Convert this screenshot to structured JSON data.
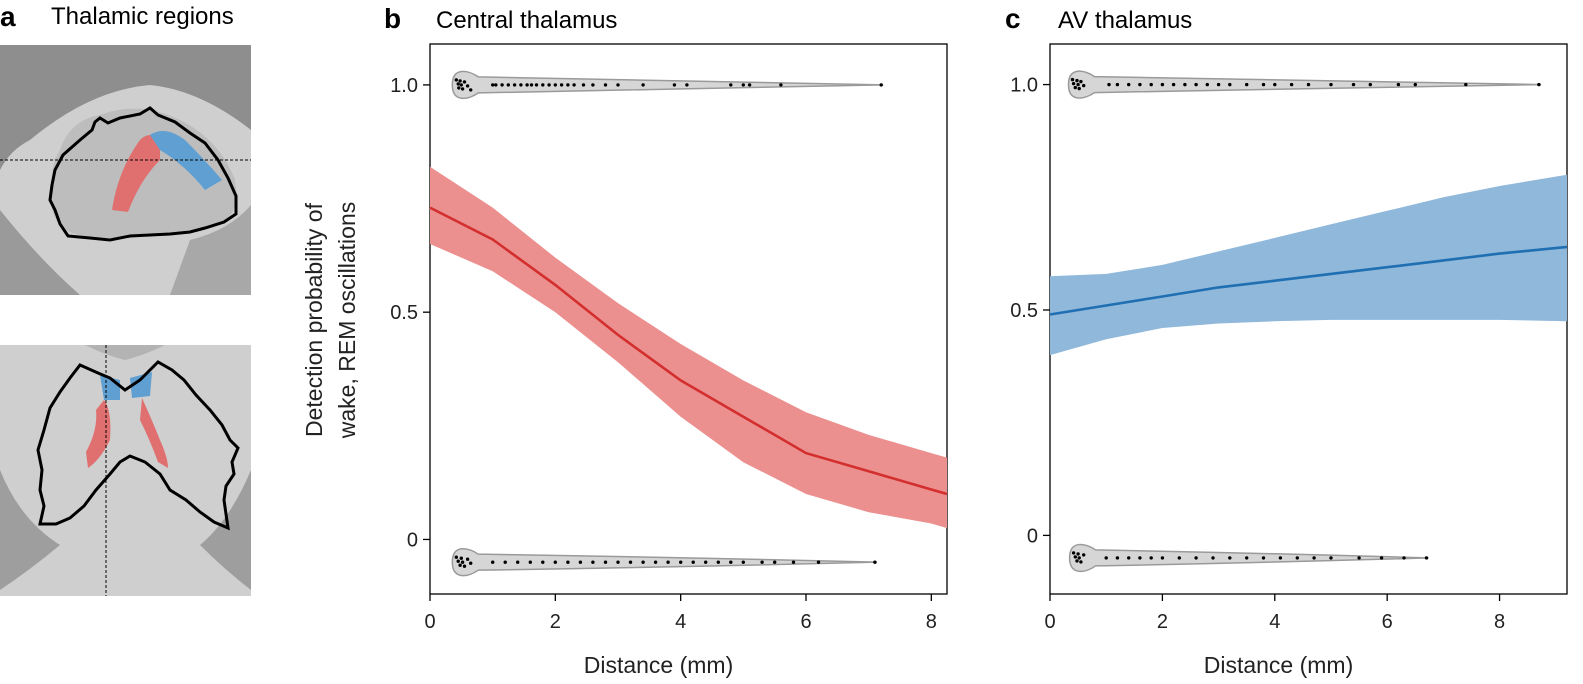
{
  "panels": {
    "a": {
      "letter": "a",
      "title": "Thalamic regions"
    },
    "b": {
      "letter": "b",
      "title": "Central thalamus"
    },
    "c": {
      "letter": "c",
      "title": "AV thalamus"
    }
  },
  "colors": {
    "central_line": "#d32f2f",
    "central_band": "#ec8f8f",
    "av_line": "#1f6fb2",
    "av_band": "#8fb8db",
    "violin_fill": "#d6d6d6",
    "violin_edge": "#9a9a9a",
    "mri_red": "#e07070",
    "mri_blue": "#5f9fd1"
  },
  "ylabel_line1": "Detection probability of",
  "ylabel_line2": "wake, REM oscillations",
  "chart_data": [
    {
      "type": "line",
      "panel": "b",
      "title": "Central thalamus",
      "xlabel": "Distance (mm)",
      "ylabel": "Detection probability of wake, REM oscillations",
      "xlim": [
        0,
        8.25
      ],
      "ylim": [
        -0.12,
        1.09
      ],
      "xticks": [
        0,
        2,
        4,
        6,
        8
      ],
      "yticks": [
        0,
        0.5,
        1.0
      ],
      "ytick_labels": [
        "0",
        "0.5",
        "1.0"
      ],
      "series": [
        {
          "x": [
            0,
            1,
            2,
            3,
            4,
            5,
            6,
            7,
            8,
            8.25
          ],
          "y": [
            0.73,
            0.66,
            0.56,
            0.45,
            0.35,
            0.27,
            0.19,
            0.15,
            0.11,
            0.1
          ],
          "lower": [
            0.65,
            0.59,
            0.5,
            0.39,
            0.27,
            0.17,
            0.1,
            0.06,
            0.035,
            0.025
          ],
          "upper": [
            0.82,
            0.73,
            0.62,
            0.52,
            0.43,
            0.35,
            0.28,
            0.23,
            0.19,
            0.18
          ]
        }
      ],
      "violins": {
        "top_y": 1.0,
        "bottom_y": -0.05,
        "top_points": [
          0.42,
          0.45,
          0.46,
          0.48,
          0.5,
          0.52,
          0.55,
          0.6,
          0.65,
          1.0,
          1.05,
          1.15,
          1.25,
          1.35,
          1.45,
          1.55,
          1.62,
          1.7,
          1.8,
          1.9,
          2.0,
          2.1,
          2.2,
          2.3,
          2.45,
          2.6,
          2.8,
          3.0,
          3.4,
          3.9,
          4.1,
          4.8,
          5.0,
          5.1,
          5.6,
          7.2
        ],
        "bottom_points": [
          0.42,
          0.45,
          0.48,
          0.5,
          0.52,
          0.55,
          0.6,
          0.65,
          1.0,
          1.2,
          1.4,
          1.6,
          1.8,
          2.0,
          2.2,
          2.4,
          2.6,
          2.8,
          3.0,
          3.2,
          3.4,
          3.6,
          3.8,
          4.0,
          4.2,
          4.4,
          4.6,
          4.8,
          5.0,
          5.3,
          5.5,
          5.8,
          6.2,
          7.1
        ]
      }
    },
    {
      "type": "line",
      "panel": "c",
      "title": "AV thalamus",
      "xlabel": "Distance (mm)",
      "ylabel": "",
      "xlim": [
        0,
        9.2
      ],
      "ylim": [
        -0.13,
        1.09
      ],
      "xticks": [
        0,
        2,
        4,
        6,
        8
      ],
      "yticks": [
        0,
        0.5,
        1.0
      ],
      "ytick_labels": [
        "0",
        "0.5",
        "1.0"
      ],
      "series": [
        {
          "x": [
            0,
            1,
            2,
            3,
            4,
            5,
            6,
            7,
            8,
            9.2
          ],
          "y": [
            0.49,
            0.51,
            0.53,
            0.55,
            0.565,
            0.58,
            0.595,
            0.61,
            0.625,
            0.64
          ],
          "lower": [
            0.4,
            0.435,
            0.46,
            0.47,
            0.475,
            0.478,
            0.478,
            0.478,
            0.478,
            0.475
          ],
          "upper": [
            0.575,
            0.58,
            0.6,
            0.63,
            0.66,
            0.69,
            0.72,
            0.75,
            0.775,
            0.8
          ]
        }
      ],
      "violins": {
        "top_y": 1.0,
        "bottom_y": -0.05,
        "top_points": [
          0.4,
          0.42,
          0.45,
          0.48,
          0.5,
          0.52,
          0.55,
          0.6,
          1.05,
          1.2,
          1.4,
          1.6,
          1.8,
          2.0,
          2.2,
          2.4,
          2.6,
          2.8,
          3.0,
          3.2,
          3.5,
          3.8,
          4.0,
          4.3,
          4.6,
          5.0,
          5.4,
          5.7,
          6.2,
          6.5,
          7.4,
          8.7
        ],
        "bottom_points": [
          0.42,
          0.45,
          0.48,
          0.5,
          0.52,
          0.55,
          0.6,
          1.0,
          1.2,
          1.4,
          1.6,
          1.8,
          2.0,
          2.3,
          2.6,
          2.9,
          3.2,
          3.5,
          3.8,
          4.1,
          4.4,
          4.7,
          5.0,
          5.5,
          5.9,
          6.3,
          6.7
        ]
      }
    }
  ]
}
